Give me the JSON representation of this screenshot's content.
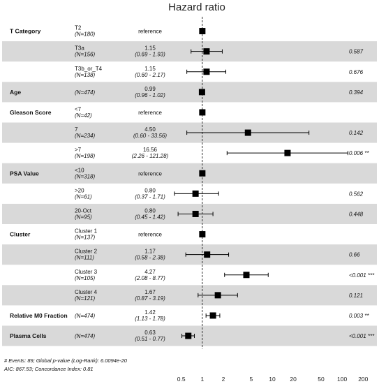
{
  "chart_data": {
    "type": "forest",
    "title": "Hazard ratio",
    "x_scale": "log",
    "xlim": [
      0.4,
      250
    ],
    "x_ticks": [
      0.5,
      1,
      2,
      5,
      10,
      20,
      50,
      100,
      200
    ],
    "x_tick_labels": [
      "0.5",
      "1",
      "2",
      "5",
      "10",
      "20",
      "50",
      "100",
      "200"
    ],
    "reference_line": 1,
    "rows": [
      {
        "var": "T Category",
        "level": "T2",
        "n": "(N=180)",
        "hr_text": "reference",
        "ci_text": "",
        "p": "",
        "hr": 1,
        "lo": null,
        "hi": null,
        "ref": true,
        "shade": false
      },
      {
        "var": "",
        "level": "T3a",
        "n": "(N=156)",
        "hr_text": "1.15",
        "ci_text": "(0.69 -  1.93)",
        "p": "0.587",
        "hr": 1.15,
        "lo": 0.69,
        "hi": 1.93,
        "ref": false,
        "shade": true
      },
      {
        "var": "",
        "level": "T3b_or_T4",
        "n": "(N=138)",
        "hr_text": "1.15",
        "ci_text": "(0.60 -  2.17)",
        "p": "0.676",
        "hr": 1.15,
        "lo": 0.6,
        "hi": 2.17,
        "ref": false,
        "shade": false
      },
      {
        "var": "Age",
        "level": "",
        "n": "(N=474)",
        "hr_text": "0.99",
        "ci_text": "(0.96 -  1.02)",
        "p": "0.394",
        "hr": 0.99,
        "lo": 0.96,
        "hi": 1.02,
        "ref": false,
        "shade": true
      },
      {
        "var": "Gleason Score",
        "level": "<7",
        "n": "(N=42)",
        "hr_text": "reference",
        "ci_text": "",
        "p": "",
        "hr": 1,
        "lo": null,
        "hi": null,
        "ref": true,
        "shade": false
      },
      {
        "var": "",
        "level": "7",
        "n": "(N=234)",
        "hr_text": "4.50",
        "ci_text": "(0.60 - 33.56)",
        "p": "0.142",
        "hr": 4.5,
        "lo": 0.6,
        "hi": 33.56,
        "ref": false,
        "shade": true
      },
      {
        "var": "",
        "level": ">7",
        "n": "(N=198)",
        "hr_text": "16.56",
        "ci_text": "(2.26 - 121.28)",
        "p": "0.006 **",
        "hr": 16.56,
        "lo": 2.26,
        "hi": 121.28,
        "ref": false,
        "shade": false
      },
      {
        "var": "PSA Value",
        "level": "<10",
        "n": "(N=318)",
        "hr_text": "reference",
        "ci_text": "",
        "p": "",
        "hr": 1,
        "lo": null,
        "hi": null,
        "ref": true,
        "shade": true
      },
      {
        "var": "",
        "level": ">20",
        "n": "(N=61)",
        "hr_text": "0.80",
        "ci_text": "(0.37 -  1.71)",
        "p": "0.562",
        "hr": 0.8,
        "lo": 0.37,
        "hi": 1.71,
        "ref": false,
        "shade": false
      },
      {
        "var": "",
        "level": "20-Oct",
        "n": "(N=95)",
        "hr_text": "0.80",
        "ci_text": "(0.45 -  1.42)",
        "p": "0.448",
        "hr": 0.8,
        "lo": 0.45,
        "hi": 1.42,
        "ref": false,
        "shade": true
      },
      {
        "var": "Cluster",
        "level": "Cluster 1",
        "n": "(N=137)",
        "hr_text": "reference",
        "ci_text": "",
        "p": "",
        "hr": 1,
        "lo": null,
        "hi": null,
        "ref": true,
        "shade": false
      },
      {
        "var": "",
        "level": "Cluster 2",
        "n": "(N=111)",
        "hr_text": "1.17",
        "ci_text": "(0.58 -  2.38)",
        "p": "0.66",
        "hr": 1.17,
        "lo": 0.58,
        "hi": 2.38,
        "ref": false,
        "shade": true
      },
      {
        "var": "",
        "level": "Cluster 3",
        "n": "(N=105)",
        "hr_text": "4.27",
        "ci_text": "(2.08 -  8.77)",
        "p": "<0.001 ***",
        "hr": 4.27,
        "lo": 2.08,
        "hi": 8.77,
        "ref": false,
        "shade": false
      },
      {
        "var": "",
        "level": "Cluster 4",
        "n": "(N=121)",
        "hr_text": "1.67",
        "ci_text": "(0.87 -  3.19)",
        "p": "0.121",
        "hr": 1.67,
        "lo": 0.87,
        "hi": 3.19,
        "ref": false,
        "shade": true
      },
      {
        "var": "Relative M0 Fraction",
        "level": "",
        "n": "(N=474)",
        "hr_text": "1.42",
        "ci_text": "(1.13 -  1.78)",
        "p": "0.003 **",
        "hr": 1.42,
        "lo": 1.13,
        "hi": 1.78,
        "ref": false,
        "shade": false
      },
      {
        "var": "Plasma Cells",
        "level": "",
        "n": "(N=474)",
        "hr_text": "0.63",
        "ci_text": "(0.51 -  0.77)",
        "p": "<0.001 ***",
        "hr": 0.63,
        "lo": 0.51,
        "hi": 0.77,
        "ref": false,
        "shade": true
      }
    ],
    "footnotes": [
      "# Events: 89; Global p-value (Log-Rank): 6.0094e-20",
      "AIC: 867.53; Concordance Index: 0.81"
    ],
    "colors": {
      "shade": "#d9d9d9",
      "marks": "#000000"
    }
  }
}
